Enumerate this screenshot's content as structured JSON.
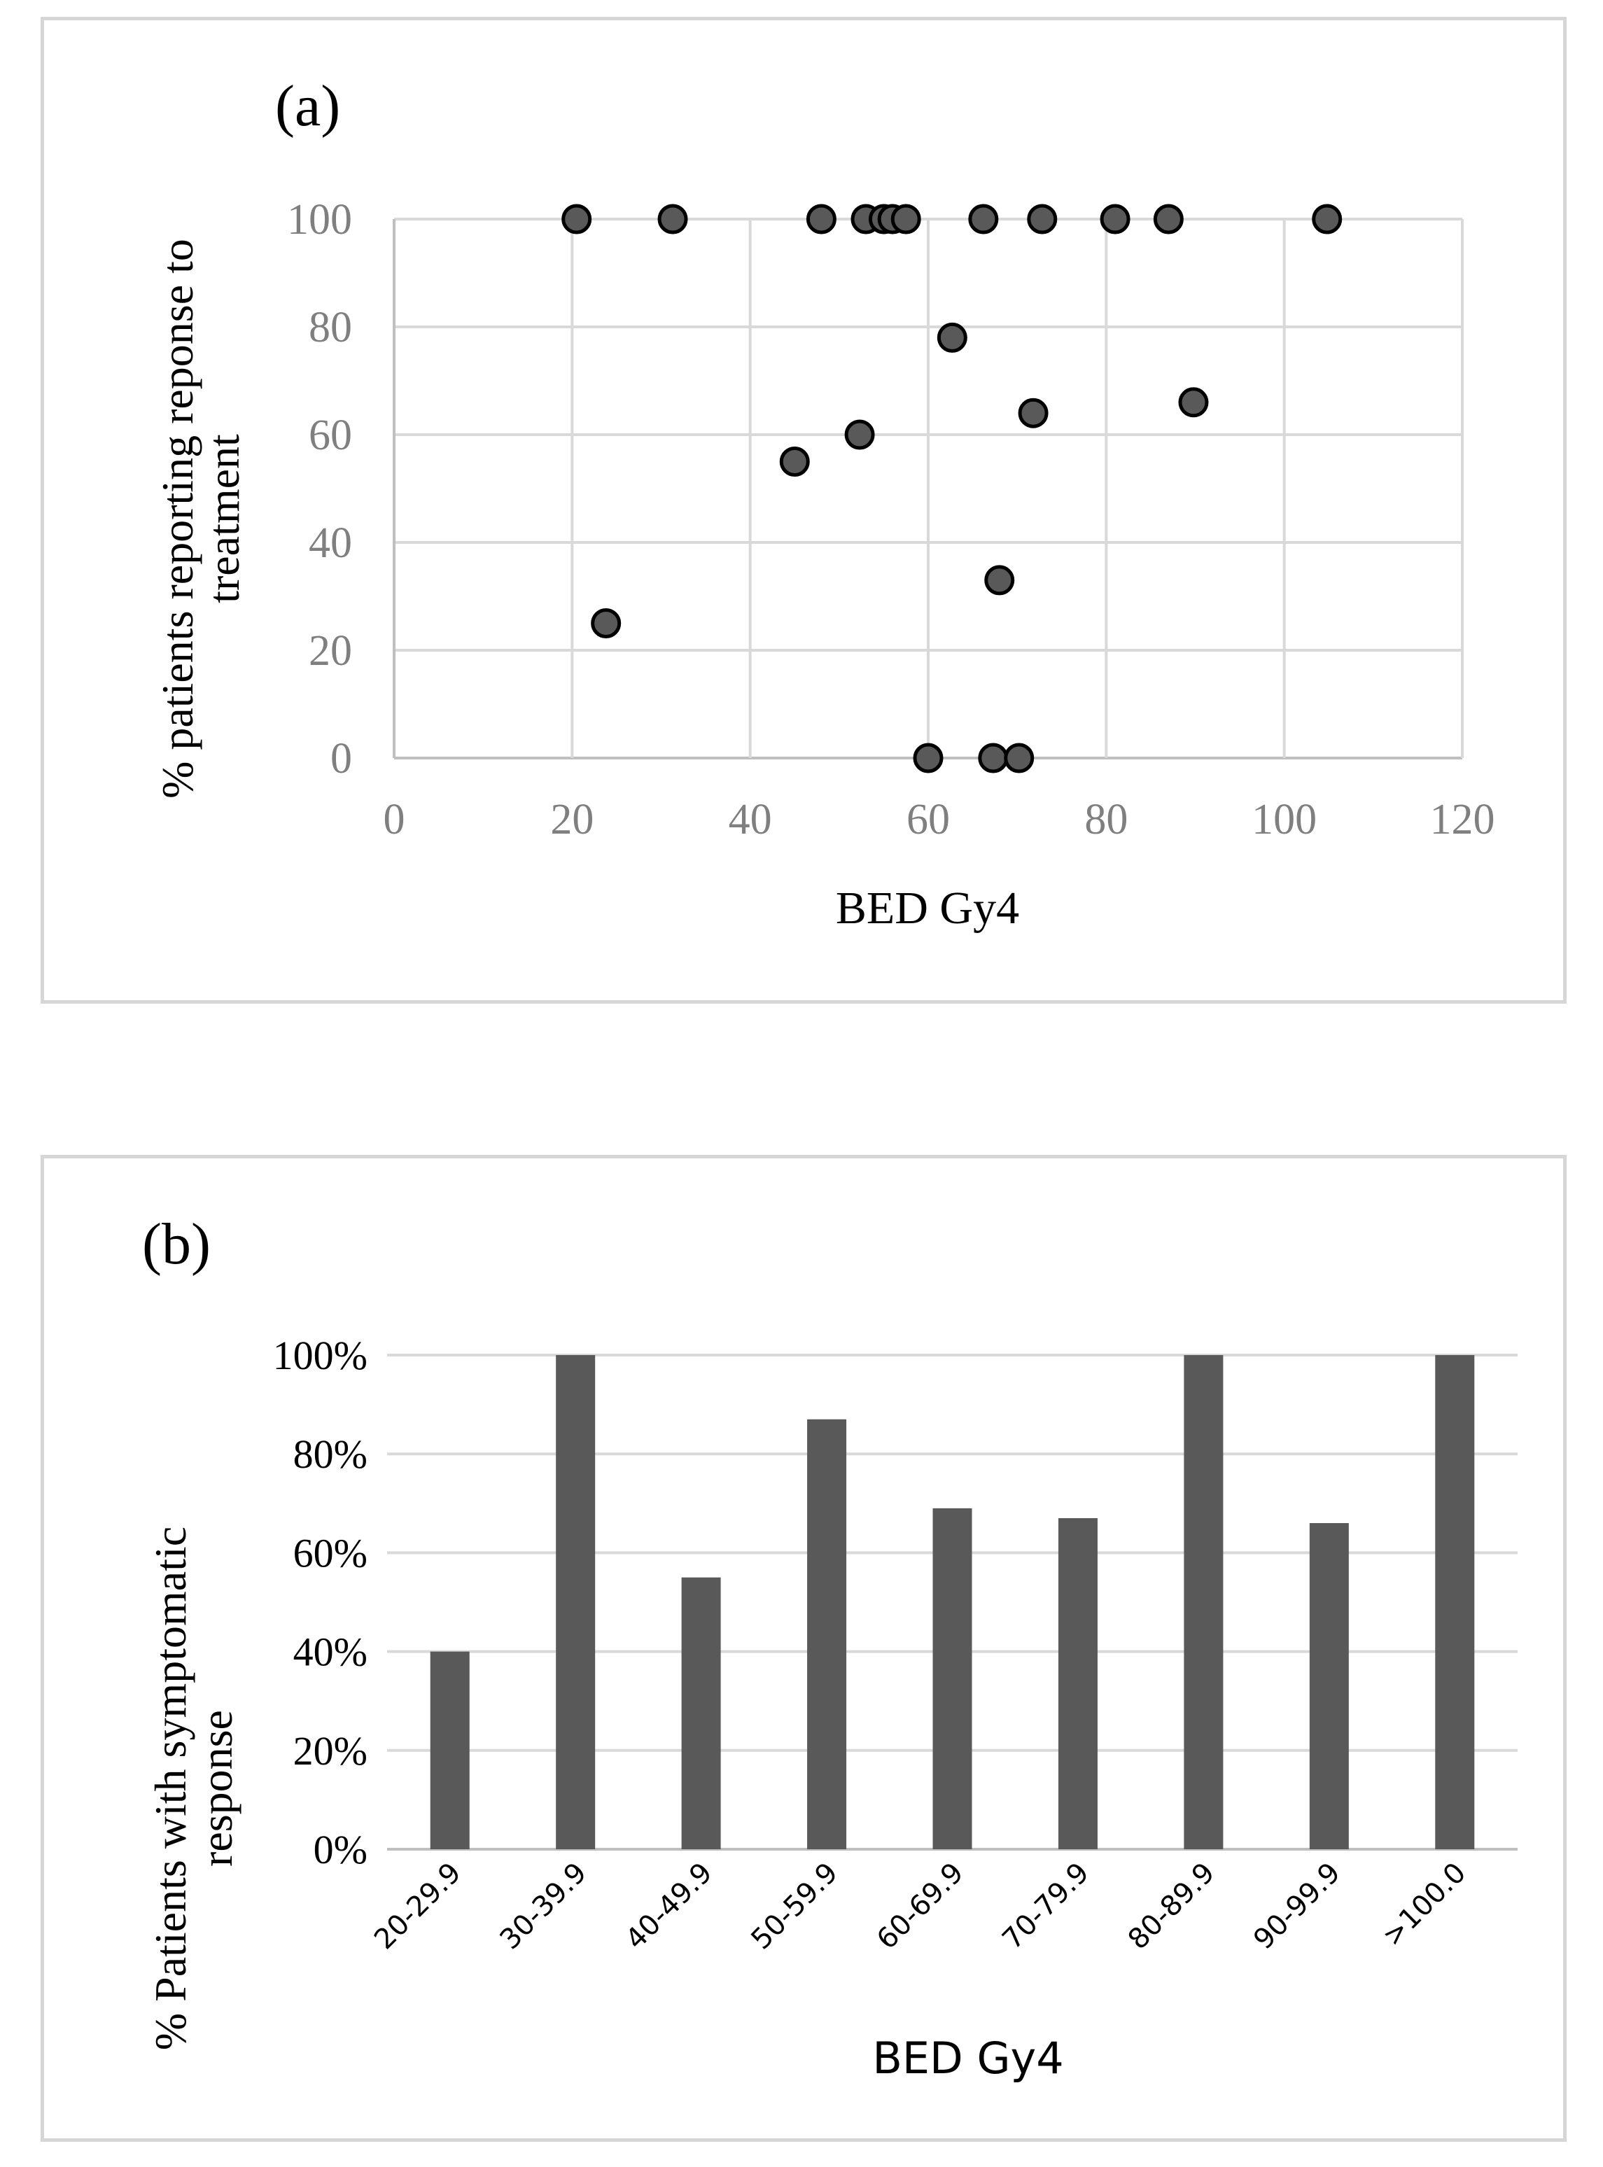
{
  "chart_data": [
    {
      "type": "scatter",
      "panel_label": "(a)",
      "xlabel": "BED Gy4",
      "ylabel": "% patients reporting reponse to treatment",
      "ylabel_lines": [
        "% patients reporting reponse to",
        "treatment"
      ],
      "xlim": [
        0,
        120
      ],
      "ylim": [
        0,
        100
      ],
      "xticks": [
        0,
        20,
        40,
        60,
        80,
        100,
        120
      ],
      "yticks": [
        0,
        20,
        40,
        60,
        80,
        100
      ],
      "grid": true,
      "marker_color": "#595959",
      "points": [
        {
          "x": 20.5,
          "y": 100
        },
        {
          "x": 31.3,
          "y": 100
        },
        {
          "x": 48.0,
          "y": 100
        },
        {
          "x": 53.0,
          "y": 100
        },
        {
          "x": 55.0,
          "y": 100
        },
        {
          "x": 56.0,
          "y": 100
        },
        {
          "x": 57.5,
          "y": 100
        },
        {
          "x": 66.2,
          "y": 100
        },
        {
          "x": 72.8,
          "y": 100
        },
        {
          "x": 81.0,
          "y": 100
        },
        {
          "x": 87.0,
          "y": 100
        },
        {
          "x": 104.8,
          "y": 100
        },
        {
          "x": 62.7,
          "y": 78
        },
        {
          "x": 89.8,
          "y": 66
        },
        {
          "x": 71.8,
          "y": 64
        },
        {
          "x": 52.3,
          "y": 60
        },
        {
          "x": 45.0,
          "y": 55
        },
        {
          "x": 68.0,
          "y": 33
        },
        {
          "x": 23.8,
          "y": 25
        },
        {
          "x": 60.0,
          "y": 0
        },
        {
          "x": 67.3,
          "y": 0
        },
        {
          "x": 70.2,
          "y": 0
        }
      ]
    },
    {
      "type": "bar",
      "panel_label": "(b)",
      "xlabel": "BED Gy4",
      "ylabel": "% Patients with symptomatic response",
      "ylabel_lines": [
        "% Patients with symptomatic",
        "response"
      ],
      "categories": [
        "20-29.9",
        "30-39.9",
        "40-49.9",
        "50-59.9",
        "60-69.9",
        "70-79.9",
        "80-89.9",
        "90-99.9",
        ">100.0"
      ],
      "values": [
        40,
        100,
        55,
        87,
        69,
        67,
        100,
        66,
        100
      ],
      "ylim": [
        0,
        100
      ],
      "yticks": [
        "0%",
        "20%",
        "40%",
        "60%",
        "80%",
        "100%"
      ],
      "grid": true,
      "bar_color": "#595959"
    }
  ]
}
